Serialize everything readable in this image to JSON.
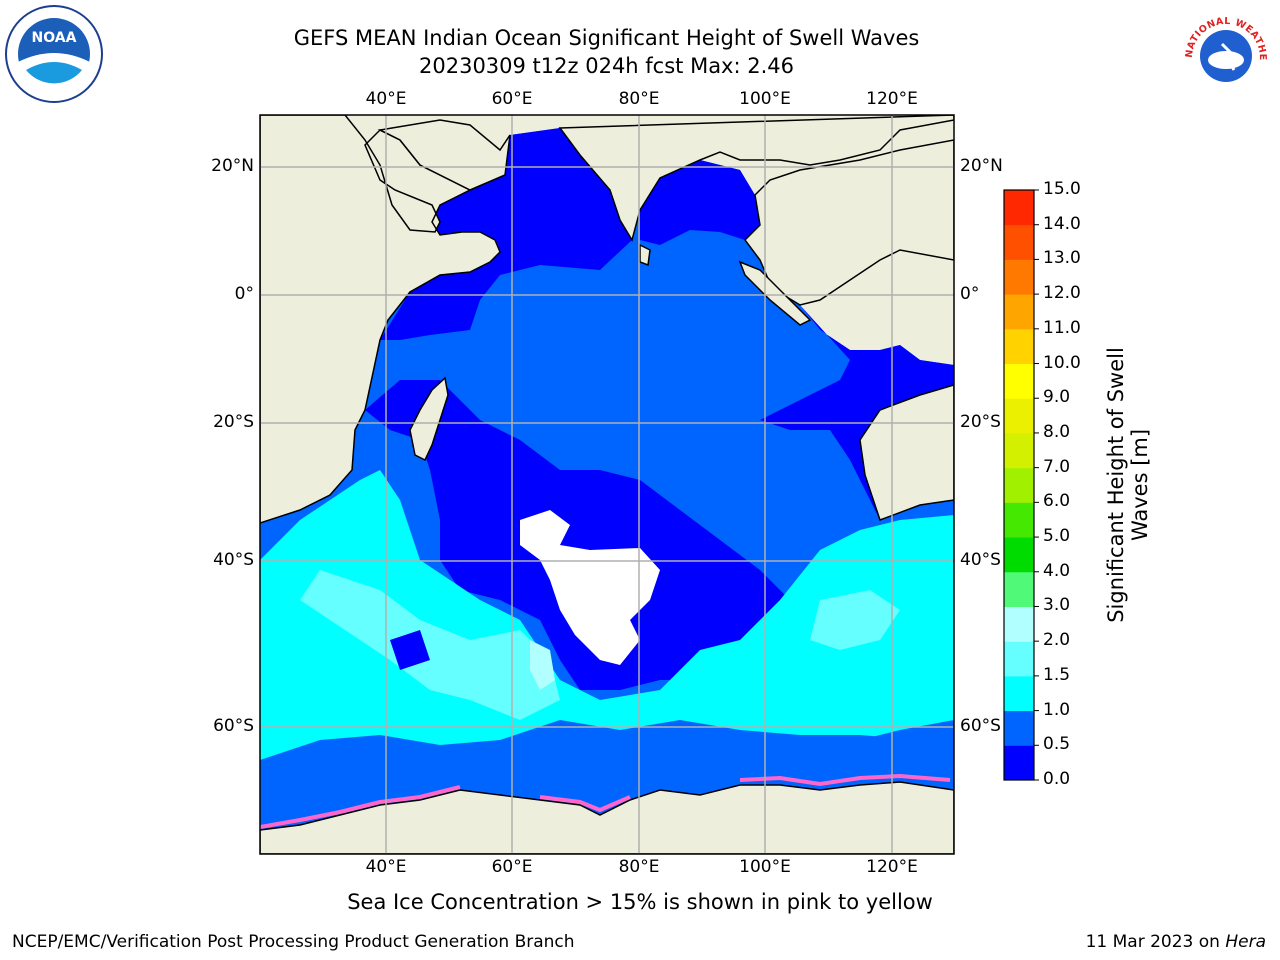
{
  "title": {
    "line1": "GEFS MEAN Indian Ocean Significant Height of Swell Waves",
    "line2": "20230309 t12z 024h fcst   Max: 2.46"
  },
  "map": {
    "lon_ticks": [
      "40°E",
      "60°E",
      "80°E",
      "100°E",
      "120°E"
    ],
    "lat_ticks": [
      "20°N",
      "0°",
      "20°S",
      "40°S",
      "60°S"
    ],
    "land_color": "#eeeedd",
    "grid_color": "#b0b0b0"
  },
  "colorbar": {
    "title_line1": "Significant Height of Swell",
    "title_line2": "Waves [m]",
    "levels": [
      "0.0",
      "0.5",
      "1.0",
      "1.5",
      "2.0",
      "3.0",
      "4.0",
      "5.0",
      "6.0",
      "7.0",
      "8.0",
      "9.0",
      "10.0",
      "11.0",
      "12.0",
      "13.0",
      "14.0",
      "15.0"
    ],
    "colors": [
      "#0000ff",
      "#0064ff",
      "#00ffff",
      "#66ffff",
      "#b2ffff",
      "#50fa78",
      "#00dc00",
      "#44e800",
      "#a0f000",
      "#d2f000",
      "#ebf000",
      "#ffff00",
      "#ffd200",
      "#ffa500",
      "#ff7800",
      "#ff5000",
      "#ff2800"
    ]
  },
  "caption": "Sea Ice Concentration > 15% is shown in pink to yellow",
  "footer": {
    "left": "NCEP/EMC/Verification Post Processing Product Generation Branch",
    "right_prefix": "11 Mar 2023 on ",
    "right_host": "Hera"
  },
  "logos": {
    "noaa_text": "NOAA",
    "nws_text": "NATIONAL WEATHER SERVICE"
  }
}
